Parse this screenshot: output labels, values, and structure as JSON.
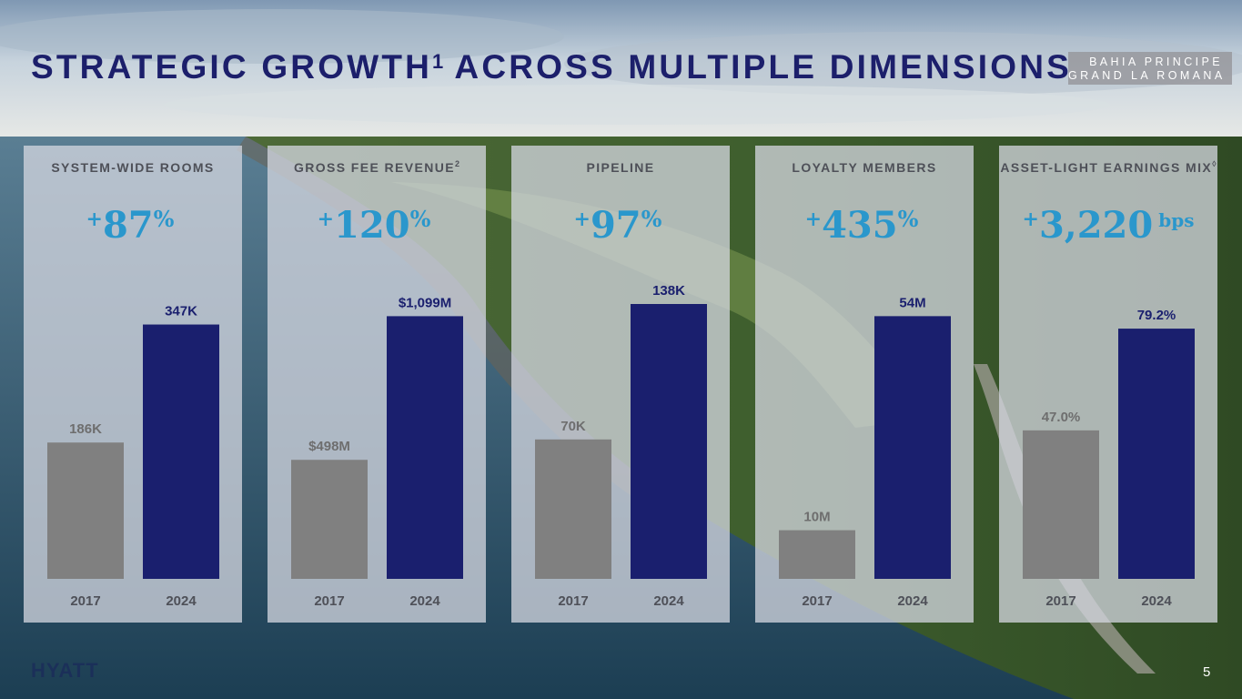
{
  "slide": {
    "title_main": "STRATEGIC GROWTH",
    "title_sup": "1",
    "title_rest": " ACROSS MULTIPLE DIMENSIONS",
    "location_line1": "BAHIA PRINCIPE",
    "location_line2": "GRAND LA ROMANA",
    "logo": "HYATT",
    "page_number": "5"
  },
  "colors": {
    "title": "#1c1f6b",
    "bar_2017": "#808080",
    "bar_2024": "#1a1f6e",
    "growth_text": "#2a97cc",
    "label_2017": "#6e6e6e",
    "label_2024": "#1a1f6e"
  },
  "panels": [
    {
      "title": "SYSTEM-WIDE ROOMS",
      "title_sup": "",
      "growth_plus": "+",
      "growth_value": "87",
      "growth_unit": "%",
      "growth_bps": ""
    },
    {
      "title": "GROSS FEE REVENUE",
      "title_sup": "2",
      "growth_plus": "+",
      "growth_value": "120",
      "growth_unit": "%",
      "growth_bps": ""
    },
    {
      "title": "PIPELINE",
      "title_sup": "",
      "growth_plus": "+",
      "growth_value": "97",
      "growth_unit": "%",
      "growth_bps": ""
    },
    {
      "title": "LOYALTY MEMBERS",
      "title_sup": "",
      "growth_plus": "+",
      "growth_value": "435",
      "growth_unit": "%",
      "growth_bps": ""
    },
    {
      "title": "ASSET-LIGHT EARNINGS MIX",
      "title_sup": "◊",
      "growth_plus": "+",
      "growth_value": "3,220",
      "growth_unit": "",
      "growth_bps": "bps"
    }
  ],
  "chart_data": [
    {
      "type": "bar",
      "title": "SYSTEM-WIDE ROOMS",
      "categories": [
        "2017",
        "2024"
      ],
      "values": [
        186,
        347
      ],
      "labels": [
        "186K",
        "347K"
      ],
      "unit": "K",
      "ylim": [
        0,
        375
      ]
    },
    {
      "type": "bar",
      "title": "GROSS FEE REVENUE",
      "categories": [
        "2017",
        "2024"
      ],
      "values": [
        498,
        1099
      ],
      "labels": [
        "$498M",
        "$1,099M"
      ],
      "unit": "$M",
      "ylim": [
        0,
        1150
      ]
    },
    {
      "type": "bar",
      "title": "PIPELINE",
      "categories": [
        "2017",
        "2024"
      ],
      "values": [
        70,
        138
      ],
      "labels": [
        "70K",
        "138K"
      ],
      "unit": "K",
      "ylim": [
        0,
        138
      ]
    },
    {
      "type": "bar",
      "title": "LOYALTY MEMBERS",
      "categories": [
        "2017",
        "2024"
      ],
      "values": [
        10,
        54
      ],
      "labels": [
        "10M",
        "54M"
      ],
      "unit": "M",
      "ylim": [
        0,
        56.5
      ]
    },
    {
      "type": "bar",
      "title": "ASSET-LIGHT EARNINGS MIX",
      "categories": [
        "2017",
        "2024"
      ],
      "values": [
        47.0,
        79.2
      ],
      "labels": [
        "47.0%",
        "79.2%"
      ],
      "unit": "%",
      "ylim": [
        0,
        87
      ]
    }
  ]
}
